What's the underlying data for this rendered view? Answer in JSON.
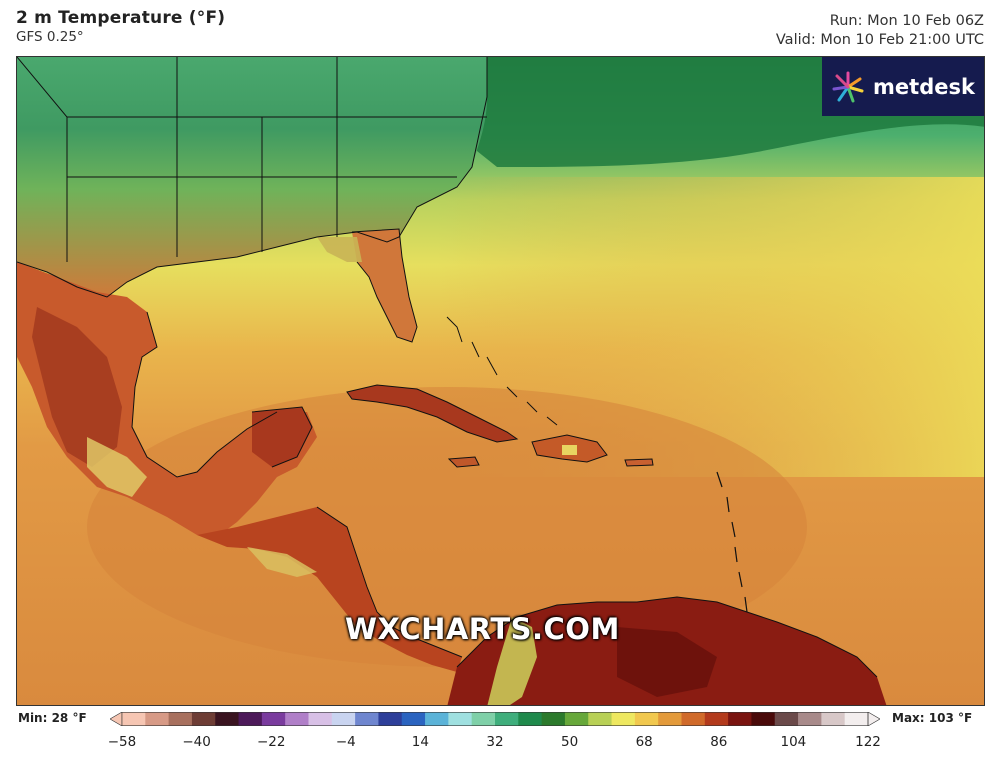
{
  "header": {
    "title": "2 m Temperature (°F)",
    "model": "GFS 0.25°",
    "run": "Run: Mon 10 Feb 06Z",
    "valid": "Valid: Mon 10 Feb 21:00 UTC"
  },
  "logo": {
    "text": "metdesk",
    "icon": "flower-burst-icon"
  },
  "watermark": "WXCHARTS.COM",
  "colorbar": {
    "min_label": "Min: 28 °F",
    "max_label": "Max: 103 °F",
    "ticks": [
      "−58",
      "−40",
      "−22",
      "−4",
      "14",
      "32",
      "50",
      "68",
      "86",
      "104",
      "122"
    ],
    "range": [
      -58,
      122
    ],
    "colors": [
      "#f6c6b3",
      "#d79a86",
      "#a8705e",
      "#6e3d35",
      "#3a1420",
      "#4d1a5a",
      "#7a3b9e",
      "#b07fc8",
      "#d8c0e6",
      "#c9d4f0",
      "#6f86cf",
      "#2e3f9a",
      "#2b64c0",
      "#5bb3d8",
      "#9fe0e0",
      "#7fd0a8",
      "#3fae7c",
      "#1f8a4c",
      "#2c7a2c",
      "#67a83a",
      "#b8d055",
      "#eee860",
      "#f1c84e",
      "#e39a3a",
      "#d06a2a",
      "#b33a1c",
      "#7a1410",
      "#4a0a0a",
      "#6b4a4a",
      "#a88a8a",
      "#d8c8c8",
      "#f3eeee"
    ]
  }
}
